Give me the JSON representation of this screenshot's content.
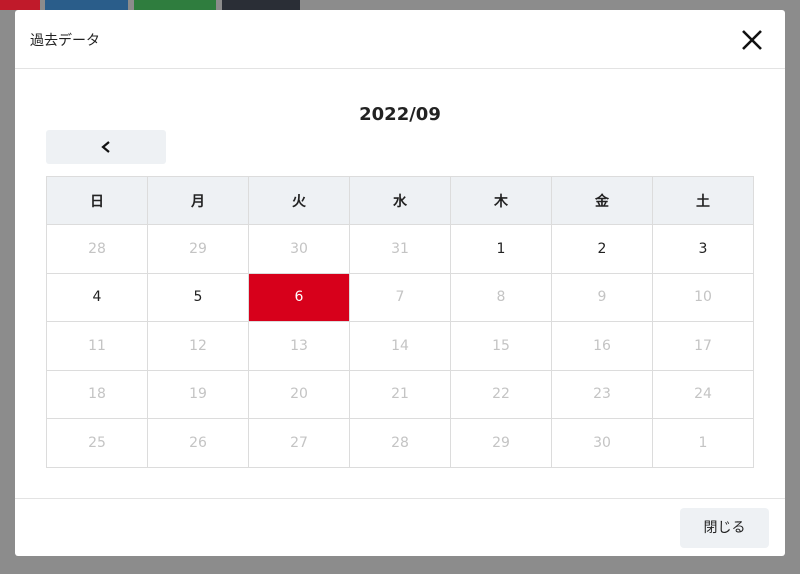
{
  "dialog": {
    "title": "過去データ",
    "month": "2022/09",
    "weekdays": [
      "日",
      "月",
      "火",
      "水",
      "木",
      "金",
      "土"
    ],
    "weeks": [
      [
        {
          "day": 28,
          "state": "disabled"
        },
        {
          "day": 29,
          "state": "disabled"
        },
        {
          "day": 30,
          "state": "disabled"
        },
        {
          "day": 31,
          "state": "disabled"
        },
        {
          "day": 1,
          "state": "enabled"
        },
        {
          "day": 2,
          "state": "enabled"
        },
        {
          "day": 3,
          "state": "enabled"
        }
      ],
      [
        {
          "day": 4,
          "state": "enabled"
        },
        {
          "day": 5,
          "state": "enabled"
        },
        {
          "day": 6,
          "state": "selected"
        },
        {
          "day": 7,
          "state": "disabled"
        },
        {
          "day": 8,
          "state": "disabled"
        },
        {
          "day": 9,
          "state": "disabled"
        },
        {
          "day": 10,
          "state": "disabled"
        }
      ],
      [
        {
          "day": 11,
          "state": "disabled"
        },
        {
          "day": 12,
          "state": "disabled"
        },
        {
          "day": 13,
          "state": "disabled"
        },
        {
          "day": 14,
          "state": "disabled"
        },
        {
          "day": 15,
          "state": "disabled"
        },
        {
          "day": 16,
          "state": "disabled"
        },
        {
          "day": 17,
          "state": "disabled"
        }
      ],
      [
        {
          "day": 18,
          "state": "disabled"
        },
        {
          "day": 19,
          "state": "disabled"
        },
        {
          "day": 20,
          "state": "disabled"
        },
        {
          "day": 21,
          "state": "disabled"
        },
        {
          "day": 22,
          "state": "disabled"
        },
        {
          "day": 23,
          "state": "disabled"
        },
        {
          "day": 24,
          "state": "disabled"
        }
      ],
      [
        {
          "day": 25,
          "state": "disabled"
        },
        {
          "day": 26,
          "state": "disabled"
        },
        {
          "day": 27,
          "state": "disabled"
        },
        {
          "day": 28,
          "state": "disabled"
        },
        {
          "day": 29,
          "state": "disabled"
        },
        {
          "day": 30,
          "state": "disabled"
        },
        {
          "day": 1,
          "state": "disabled"
        }
      ]
    ],
    "close_button": "閉じる"
  }
}
